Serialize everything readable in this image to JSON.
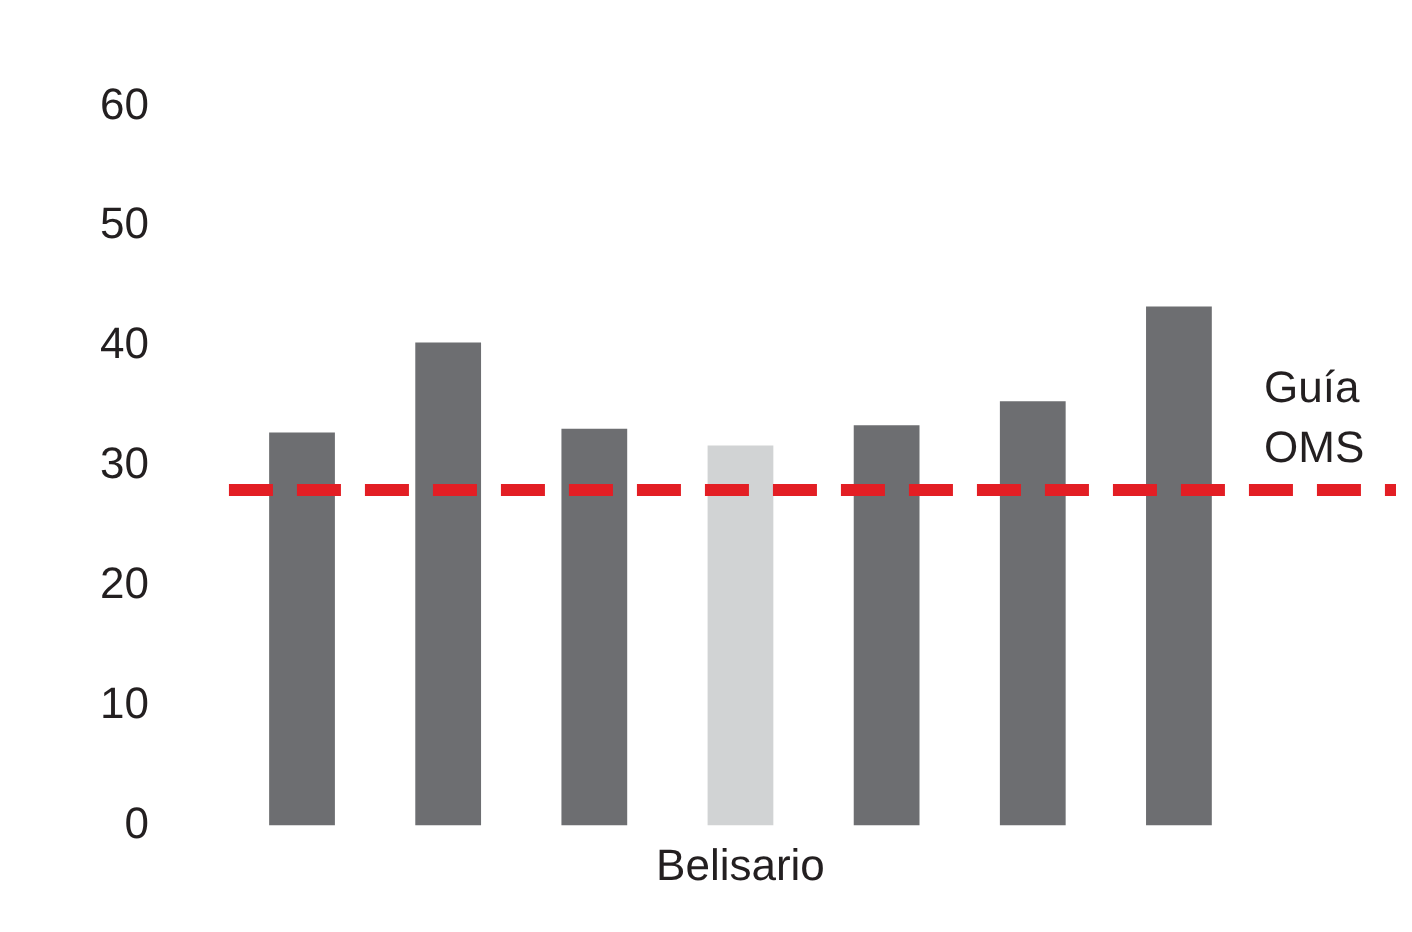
{
  "chart_data": {
    "type": "bar",
    "categories": [
      null,
      null,
      null,
      "Belisario",
      null,
      null,
      null
    ],
    "values": [
      32.8,
      40.3,
      33.1,
      31.7,
      33.4,
      35.4,
      43.3
    ],
    "colors": [
      "#6d6e71",
      "#6d6e71",
      "#6d6e71",
      "#d1d3d4",
      "#6d6e71",
      "#6d6e71",
      "#6d6e71"
    ],
    "ylim": [
      0,
      60
    ],
    "yticks": [
      0,
      10,
      20,
      30,
      40,
      50,
      60
    ],
    "grid": false,
    "legend": false,
    "ref_lines": [
      {
        "axis": "y",
        "value": 28,
        "label": "Guía OMS",
        "color": "#e31e24",
        "line_style": "dashed"
      }
    ]
  }
}
